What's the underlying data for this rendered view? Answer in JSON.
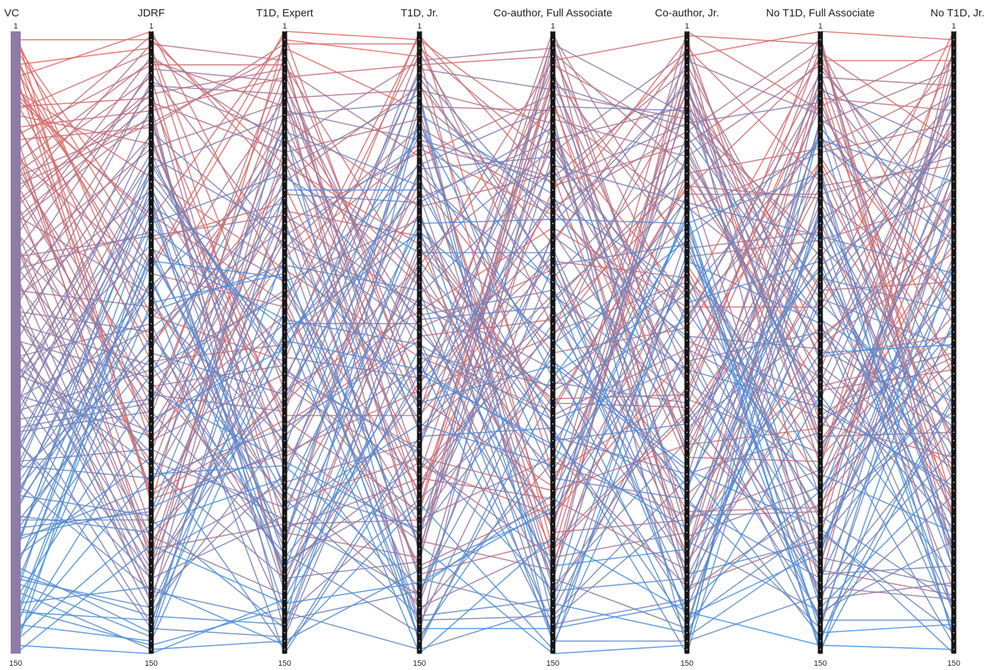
{
  "chart_data": {
    "type": "parallel-coordinates",
    "axes": [
      {
        "name": "VC",
        "min_label": "1",
        "max_label": "150"
      },
      {
        "name": "JDRF",
        "min_label": "1",
        "max_label": "150"
      },
      {
        "name": "T1D, Expert",
        "min_label": "1",
        "max_label": "150"
      },
      {
        "name": "T1D, Jr.",
        "min_label": "1",
        "max_label": "150"
      },
      {
        "name": "Co-author, Full Associate",
        "min_label": "1",
        "max_label": "150"
      },
      {
        "name": "Co-author, Jr.",
        "min_label": "1",
        "max_label": "150"
      },
      {
        "name": "No T1D, Full Associate",
        "min_label": "1",
        "max_label": "150"
      },
      {
        "name": "No T1D, Jr.",
        "min_label": "1",
        "max_label": "150"
      }
    ],
    "rank_range": [
      1,
      150
    ],
    "n_items": 150,
    "color_encoding": {
      "by_axis": "VC",
      "low_rank_color": "#e8655a",
      "mid_color": "#8e7ba6",
      "high_rank_color": "#3f8fe3"
    },
    "first_axis_color": "#8e7ba6",
    "grid": false,
    "legend": "none"
  }
}
